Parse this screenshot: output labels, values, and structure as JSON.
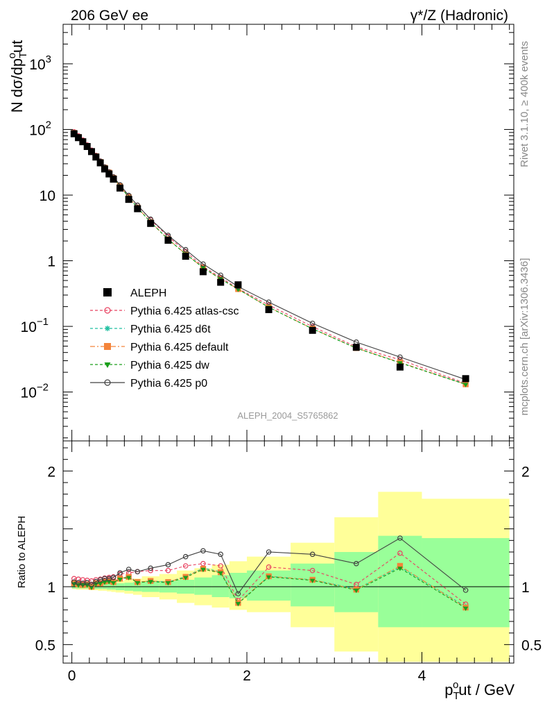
{
  "header": {
    "left": "206 GeV ee",
    "right": "γ*/Z (Hadronic)"
  },
  "side_text": {
    "rivet": "Rivet 3.1.10, ≥ 400k events",
    "mcplots": "mcplots.cern.ch [arXiv:1306.3436]"
  },
  "analysis_id": "ALEPH_2004_S5765862",
  "axes": {
    "ylabel_main": "N dσ/dp",
    "ylabel_main_sub": "T",
    "ylabel_main_sup": "o",
    "ylabel_main_end": "ut",
    "ylabel_ratio": "Ratio to ALEPH",
    "xlabel": "p",
    "xlabel_sub": "T",
    "xlabel_sup": "o",
    "xlabel_end": "ut / GeV",
    "main_ticks": [
      {
        "value": 0.01,
        "label": "10",
        "exp": "−2"
      },
      {
        "value": 0.1,
        "label": "10",
        "exp": "−1"
      },
      {
        "value": 1,
        "label": "1",
        "exp": ""
      },
      {
        "value": 10,
        "label": "10",
        "exp": ""
      },
      {
        "value": 100,
        "label": "10",
        "exp": "2"
      },
      {
        "value": 1000,
        "label": "10",
        "exp": "3"
      }
    ],
    "ratio_ticks": [
      {
        "value": 0.5,
        "label": "0.5"
      },
      {
        "value": 1,
        "label": "1"
      },
      {
        "value": 2,
        "label": "2"
      }
    ],
    "x_ticks": [
      {
        "value": 0,
        "label": "0"
      },
      {
        "value": 2,
        "label": "2"
      },
      {
        "value": 4,
        "label": "4"
      }
    ]
  },
  "legend": [
    {
      "label": "ALEPH",
      "color": "#000000",
      "marker": "square-filled",
      "line": "none"
    },
    {
      "label": "Pythia 6.425 atlas-csc",
      "color": "#e8405f",
      "marker": "circle-open",
      "line": "dashed"
    },
    {
      "label": "Pythia 6.425 d6t",
      "color": "#1fbfa0",
      "marker": "star",
      "line": "dashed"
    },
    {
      "label": "Pythia 6.425 default",
      "color": "#f4843a",
      "marker": "square-filled",
      "line": "dashdot"
    },
    {
      "label": "Pythia 6.425 dw",
      "color": "#1a9e1a",
      "marker": "triangle-down",
      "line": "dashed"
    },
    {
      "label": "Pythia 6.425 p0",
      "color": "#404040",
      "marker": "circle-open",
      "line": "solid"
    }
  ],
  "chart_data": {
    "type": "line",
    "xlim": [
      -0.1,
      5.05
    ],
    "ylim_main": [
      0.0018,
      4000
    ],
    "ylog_main": true,
    "ylim_ratio": [
      0.34,
      2.26
    ],
    "x": [
      0.025,
      0.075,
      0.125,
      0.175,
      0.225,
      0.275,
      0.325,
      0.375,
      0.425,
      0.475,
      0.55,
      0.65,
      0.75,
      0.9,
      1.1,
      1.3,
      1.5,
      1.7,
      1.9,
      2.25,
      2.75,
      3.25,
      3.75,
      4.5
    ],
    "data": {
      "name": "ALEPH",
      "values": [
        86,
        75,
        65,
        55,
        46,
        38,
        31,
        25,
        21,
        17.5,
        12.8,
        8.6,
        6.2,
        3.7,
        2.05,
        1.17,
        0.68,
        0.47,
        0.43,
        0.18,
        0.087,
        0.048,
        0.024,
        0.016
      ]
    },
    "ratio_bands": {
      "edges": [
        0,
        0.05,
        0.1,
        0.15,
        0.2,
        0.25,
        0.3,
        0.35,
        0.4,
        0.45,
        0.5,
        0.6,
        0.7,
        0.8,
        1.0,
        1.2,
        1.4,
        1.6,
        1.8,
        2.0,
        2.5,
        3.0,
        3.5,
        4.0,
        5.0
      ],
      "green_lo": [
        0.985,
        0.985,
        0.985,
        0.985,
        0.985,
        0.98,
        0.98,
        0.98,
        0.975,
        0.975,
        0.97,
        0.965,
        0.96,
        0.955,
        0.95,
        0.94,
        0.93,
        0.91,
        0.9,
        0.88,
        0.83,
        0.78,
        0.65,
        0.65
      ],
      "green_hi": [
        1.015,
        1.015,
        1.015,
        1.015,
        1.015,
        1.02,
        1.02,
        1.02,
        1.025,
        1.025,
        1.03,
        1.035,
        1.04,
        1.045,
        1.05,
        1.06,
        1.08,
        1.1,
        1.12,
        1.14,
        1.2,
        1.3,
        1.44,
        1.42
      ],
      "yellow_lo": [
        0.98,
        0.975,
        0.975,
        0.975,
        0.97,
        0.97,
        0.965,
        0.965,
        0.96,
        0.955,
        0.95,
        0.94,
        0.93,
        0.91,
        0.89,
        0.86,
        0.84,
        0.82,
        0.8,
        0.78,
        0.65,
        0.44,
        0.35,
        0.35
      ],
      "yellow_hi": [
        1.02,
        1.025,
        1.025,
        1.025,
        1.03,
        1.03,
        1.035,
        1.035,
        1.04,
        1.045,
        1.05,
        1.06,
        1.07,
        1.09,
        1.11,
        1.14,
        1.16,
        1.19,
        1.22,
        1.26,
        1.38,
        1.6,
        1.82,
        1.76
      ]
    },
    "series": [
      {
        "name": "Pythia 6.425 atlas-csc",
        "ratio": [
          1.07,
          1.065,
          1.06,
          1.055,
          1.05,
          1.06,
          1.065,
          1.075,
          1.08,
          1.085,
          1.11,
          1.12,
          1.13,
          1.14,
          1.14,
          1.18,
          1.2,
          1.18,
          0.88,
          1.17,
          1.14,
          1.02,
          1.29,
          0.85
        ]
      },
      {
        "name": "Pythia 6.425 d6t",
        "ratio": [
          1.03,
          1.02,
          1.02,
          1.02,
          1.0,
          1.03,
          1.03,
          1.045,
          1.05,
          1.04,
          1.07,
          1.09,
          1.04,
          1.05,
          1.04,
          1.09,
          1.16,
          1.13,
          0.86,
          1.09,
          1.06,
          0.98,
          1.17,
          0.83
        ]
      },
      {
        "name": "Pythia 6.425 default",
        "ratio": [
          1.03,
          1.02,
          1.015,
          1.02,
          1.0,
          1.03,
          1.03,
          1.045,
          1.05,
          1.04,
          1.07,
          1.085,
          1.04,
          1.05,
          1.04,
          1.085,
          1.155,
          1.125,
          0.86,
          1.09,
          1.06,
          0.975,
          1.18,
          0.82
        ]
      },
      {
        "name": "Pythia 6.425 dw",
        "ratio": [
          1.025,
          1.015,
          1.015,
          1.015,
          0.995,
          1.025,
          1.03,
          1.04,
          1.045,
          1.035,
          1.065,
          1.08,
          1.035,
          1.045,
          1.035,
          1.08,
          1.15,
          1.12,
          0.855,
          1.085,
          1.055,
          0.97,
          1.16,
          0.815
        ]
      },
      {
        "name": "Pythia 6.425 p0",
        "ratio": [
          1.04,
          1.035,
          1.03,
          1.035,
          1.02,
          1.045,
          1.06,
          1.07,
          1.07,
          1.08,
          1.12,
          1.15,
          1.13,
          1.16,
          1.19,
          1.26,
          1.31,
          1.28,
          0.94,
          1.3,
          1.28,
          1.2,
          1.42,
          0.97
        ]
      }
    ]
  }
}
